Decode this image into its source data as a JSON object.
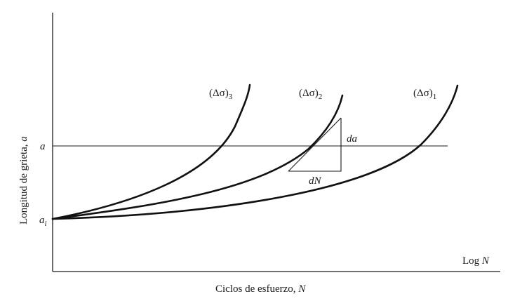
{
  "axes": {
    "y_label": "Longitud de grieta, ",
    "y_label_var": "a",
    "x_label": "Ciclos de esfuerzo, ",
    "x_label_var": "N",
    "x_end_label": "Log ",
    "x_end_label_var": "N"
  },
  "ticks": {
    "a": "a",
    "ai_base": "a",
    "ai_sub": "i"
  },
  "curves": [
    {
      "label_open": "(Δσ)",
      "label_sub": "3"
    },
    {
      "label_open": "(Δσ)",
      "label_sub": "2"
    },
    {
      "label_open": "(Δσ)",
      "label_sub": "1"
    }
  ],
  "triangle": {
    "da": "da",
    "dN": "dN"
  }
}
